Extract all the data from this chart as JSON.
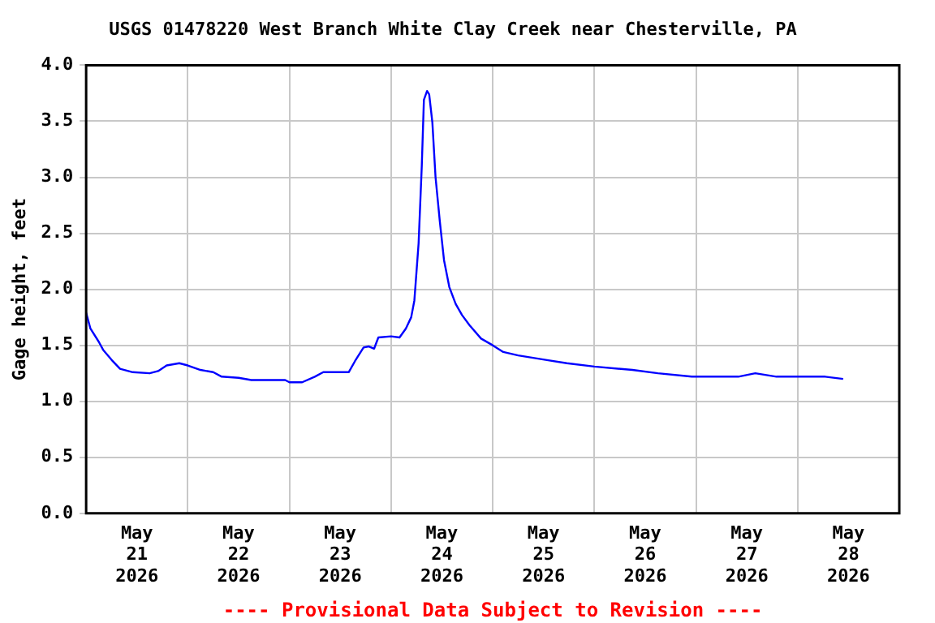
{
  "chart_data": {
    "type": "line",
    "title": "USGS 01478220 West Branch White Clay Creek near Chesterville, PA",
    "ylabel": "Gage height, feet",
    "annotations": [
      "---- Provisional Data Subject to Revision ----"
    ],
    "x": [
      "2026-05-21T00:00",
      "2026-05-21T01:00",
      "2026-05-21T03:00",
      "2026-05-21T04:00",
      "2026-05-21T06:00",
      "2026-05-21T08:00",
      "2026-05-21T11:00",
      "2026-05-21T15:00",
      "2026-05-21T17:00",
      "2026-05-21T19:00",
      "2026-05-21T22:00",
      "2026-05-22T00:00",
      "2026-05-22T03:00",
      "2026-05-22T06:00",
      "2026-05-22T08:00",
      "2026-05-22T12:00",
      "2026-05-22T15:00",
      "2026-05-22T23:00",
      "2026-05-23T00:00",
      "2026-05-23T03:00",
      "2026-05-23T06:00",
      "2026-05-23T08:00",
      "2026-05-23T14:00",
      "2026-05-23T15:30",
      "2026-05-23T17:30",
      "2026-05-23T18:45",
      "2026-05-23T20:00",
      "2026-05-23T21:00",
      "2026-05-24T00:00",
      "2026-05-24T02:00",
      "2026-05-24T03:30",
      "2026-05-24T04:45",
      "2026-05-24T05:30",
      "2026-05-24T06:30",
      "2026-05-24T07:15",
      "2026-05-24T07:45",
      "2026-05-24T08:30",
      "2026-05-24T09:00",
      "2026-05-24T09:45",
      "2026-05-24T10:30",
      "2026-05-24T11:30",
      "2026-05-24T12:30",
      "2026-05-24T13:45",
      "2026-05-24T15:15",
      "2026-05-24T16:45",
      "2026-05-24T18:30",
      "2026-05-24T21:15",
      "2026-05-25T00:00",
      "2026-05-25T02:30",
      "2026-05-25T06:00",
      "2026-05-25T12:30",
      "2026-05-25T17:30",
      "2026-05-26T00:00",
      "2026-05-26T09:00",
      "2026-05-26T15:00",
      "2026-05-26T23:00",
      "2026-05-27T10:00",
      "2026-05-27T14:00",
      "2026-05-27T19:00",
      "2026-05-28T06:30",
      "2026-05-28T10:45"
    ],
    "series": [
      {
        "color": "#0000ff",
        "values": [
          1.79,
          1.65,
          1.53,
          1.46,
          1.37,
          1.29,
          1.26,
          1.25,
          1.27,
          1.32,
          1.34,
          1.32,
          1.28,
          1.26,
          1.22,
          1.21,
          1.19,
          1.19,
          1.17,
          1.17,
          1.22,
          1.26,
          1.26,
          1.36,
          1.48,
          1.49,
          1.47,
          1.57,
          1.58,
          1.57,
          1.65,
          1.75,
          1.9,
          2.41,
          3.1,
          3.69,
          3.77,
          3.74,
          3.49,
          3.0,
          2.61,
          2.26,
          2.02,
          1.87,
          1.77,
          1.68,
          1.56,
          1.5,
          1.44,
          1.41,
          1.37,
          1.34,
          1.31,
          1.28,
          1.25,
          1.22,
          1.22,
          1.25,
          1.22,
          1.22,
          1.2
        ]
      }
    ],
    "xlim": [
      "2026-05-21T00:00",
      "2026-05-29T00:00"
    ],
    "xticks": [
      {
        "value": "2026-05-21T12:00",
        "label": "May\n21\n2026"
      },
      {
        "value": "2026-05-22T00:00",
        "label": null
      },
      {
        "value": "2026-05-22T12:00",
        "label": "May\n22\n2026"
      },
      {
        "value": "2026-05-23T00:00",
        "label": null
      },
      {
        "value": "2026-05-23T12:00",
        "label": "May\n23\n2026"
      },
      {
        "value": "2026-05-24T00:00",
        "label": null
      },
      {
        "value": "2026-05-24T12:00",
        "label": "May\n24\n2026"
      },
      {
        "value": "2026-05-25T00:00",
        "label": null
      },
      {
        "value": "2026-05-25T12:00",
        "label": "May\n25\n2026"
      },
      {
        "value": "2026-05-26T00:00",
        "label": null
      },
      {
        "value": "2026-05-26T12:00",
        "label": "May\n26\n2026"
      },
      {
        "value": "2026-05-27T00:00",
        "label": null
      },
      {
        "value": "2026-05-27T12:00",
        "label": "May\n27\n2026"
      },
      {
        "value": "2026-05-28T00:00",
        "label": null
      },
      {
        "value": "2026-05-28T12:00",
        "label": "May\n28\n2026"
      }
    ],
    "ylim": [
      0,
      4
    ],
    "yticks": [
      {
        "value": 0,
        "label": "0.0"
      },
      {
        "value": 0.5,
        "label": "0.5"
      },
      {
        "value": 1,
        "label": "1.0"
      },
      {
        "value": 1.5,
        "label": "1.5"
      },
      {
        "value": 2,
        "label": "2.0"
      },
      {
        "value": 2.5,
        "label": "2.5"
      },
      {
        "value": 3,
        "label": "3.0"
      },
      {
        "value": 3.5,
        "label": "3.5"
      },
      {
        "value": 4,
        "label": "4.0"
      }
    ],
    "grid": true,
    "legend": false,
    "marker": "none",
    "line_style": "solid"
  }
}
